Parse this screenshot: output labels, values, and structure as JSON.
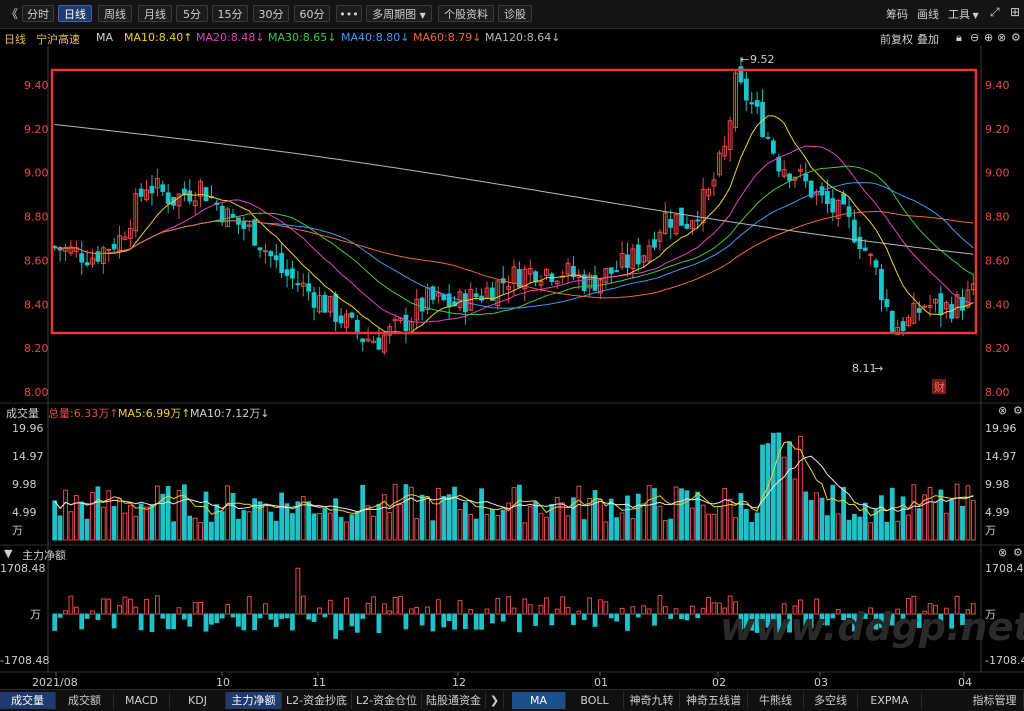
{
  "toolbar": {
    "back": "《",
    "periods": [
      "分时",
      "日线",
      "周线",
      "月线",
      "5分",
      "15分",
      "30分",
      "60分"
    ],
    "active_period": "日线",
    "more": "•••",
    "multi_period": "多周期图",
    "stock_info": "个股资料",
    "diagnose": "诊股",
    "right": [
      "筹码",
      "画线",
      "工具"
    ]
  },
  "legend": {
    "period": "日线",
    "name": "宁沪高速",
    "ma": "MA",
    "ma10": "MA10:8.40↑",
    "ma20": "MA20:8.48↓",
    "ma30": "MA30:8.65↓",
    "ma40": "MA40:8.80↓",
    "ma60": "MA60:8.79↓",
    "ma120": "MA120:8.64↓",
    "adjust": "前复权",
    "overlay": "叠加"
  },
  "colors": {
    "up": "#e84a4a",
    "down": "#1fc2c9",
    "ma10": "#f2d31b",
    "ma20": "#e640c8",
    "ma30": "#3cc94b",
    "ma40": "#3a9cf2",
    "ma60": "#f06a2a",
    "ma120": "#b8b8b8",
    "highlight_box": "#e8353a",
    "price_axis": "#e84a4a"
  },
  "price_axis": [
    "9.40",
    "9.20",
    "9.00",
    "8.80",
    "8.60",
    "8.40",
    "8.20",
    "8.00"
  ],
  "annotations": {
    "high": "9.52",
    "low": "8.11",
    "cai": "财"
  },
  "volume": {
    "title": "成交量",
    "total": "总量:6.33万↑",
    "ma5": "MA5:6.99万↑",
    "ma10": "MA10:7.12万↓",
    "axis": [
      "19.96",
      "14.97",
      "9.98",
      "4.99",
      "万"
    ]
  },
  "flow": {
    "title": "主力净额",
    "axis_top": "1708.48",
    "axis_mid": "万",
    "axis_bottom": "-1708.48"
  },
  "time_axis": [
    "2021/08",
    "10",
    "11",
    "12",
    "01",
    "02",
    "03",
    "04"
  ],
  "bottom_tabs_left": [
    "成交量",
    "成交额",
    "MACD",
    "KDJ",
    "主力净额",
    "L2-资金抄底",
    "L2-资金仓位",
    "陆股通资金"
  ],
  "bottom_tabs_right": [
    "MA",
    "BOLL",
    "神奇九转",
    "神奇五线谱",
    "牛熊线",
    "多空线",
    "EXPMA",
    "指标管理"
  ],
  "watermark": "www.ddgp.net"
}
